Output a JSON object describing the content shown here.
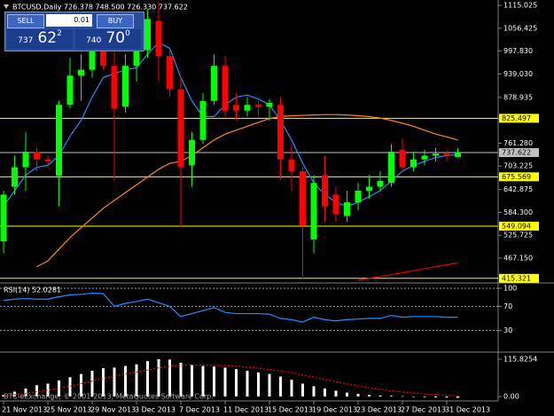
{
  "title": "BTCUSD,Daily  726.378 748.500 726.330 737.622",
  "watermark": "BTC-eExchange, © 2001-2013, MetaQuotes Software Corp.",
  "trade_panel": {
    "sell": "SELL",
    "lot": "0.01",
    "buy": "BUY",
    "bid": {
      "main": "737",
      "big": "62",
      "sup": "2"
    },
    "ask": {
      "main": "740",
      "big": "70",
      "sup": "0"
    }
  },
  "chart_data": [
    {
      "type": "candlestick",
      "categories": [
        "21 Nov 2013",
        null,
        null,
        null,
        "25 Nov 2013",
        null,
        null,
        null,
        "29 Nov 2013",
        null,
        null,
        null,
        "3 Dec 2013",
        null,
        null,
        null,
        "7 Dec 2013",
        null,
        null,
        null,
        "11 Dec 2013",
        null,
        null,
        null,
        "15 Dec 2013",
        null,
        null,
        null,
        "19 Dec 2013",
        null,
        null,
        null,
        "23 Dec 2013",
        null,
        null,
        null,
        "27 Dec 2013",
        null,
        null,
        null,
        "31 Dec 2013",
        null
      ],
      "open": [
        510,
        650,
        700,
        740,
        720,
        678,
        860,
        935,
        950,
        1000,
        960,
        855,
        960,
        1000,
        1075,
        985,
        900,
        705,
        770,
        870,
        960,
        860,
        845,
        860,
        855,
        860,
        720,
        690,
        515,
        680,
        630,
        575,
        610,
        640,
        650,
        660,
        745,
        700,
        720,
        730,
        735,
        726.378
      ],
      "high": [
        640,
        730,
        790,
        750,
        730,
        870,
        980,
        990,
        1070,
        1030,
        1000,
        990,
        1030,
        1105,
        1120,
        1000,
        930,
        790,
        890,
        990,
        985,
        890,
        880,
        870,
        875,
        880,
        760,
        700,
        680,
        730,
        650,
        640,
        660,
        680,
        690,
        760,
        775,
        740,
        745,
        750,
        745,
        748.5
      ],
      "low": [
        480,
        630,
        640,
        690,
        700,
        600,
        850,
        870,
        930,
        950,
        665,
        840,
        920,
        980,
        920,
        880,
        545,
        650,
        760,
        860,
        830,
        820,
        830,
        830,
        820,
        670,
        640,
        415,
        480,
        560,
        560,
        560,
        590,
        620,
        640,
        650,
        690,
        690,
        705,
        715,
        715,
        726.33
      ],
      "close": [
        630,
        700,
        740,
        720,
        715,
        860,
        935,
        950,
        1010,
        960,
        850,
        960,
        1000,
        1080,
        985,
        900,
        700,
        770,
        870,
        960,
        845,
        845,
        860,
        855,
        865,
        720,
        690,
        550,
        660,
        600,
        580,
        610,
        640,
        650,
        665,
        740,
        700,
        720,
        730,
        735,
        730,
        737.622
      ],
      "up_color": "#00ff00",
      "down_color": "#ff0000",
      "series": [
        {
          "color": "#1e90ff",
          "values": [
            600,
            640,
            680,
            700,
            705,
            730,
            780,
            820,
            880,
            930,
            940,
            950,
            955,
            990,
            1020,
            1005,
            930,
            870,
            830,
            830,
            860,
            880,
            885,
            875,
            860,
            820,
            770,
            710,
            660,
            630,
            610,
            600,
            610,
            625,
            640,
            665,
            690,
            705,
            715,
            725,
            730,
            733
          ]
        },
        {
          "color": "#ff8c00",
          "values": [
            null,
            null,
            null,
            445,
            460,
            490,
            520,
            545,
            570,
            595,
            615,
            635,
            655,
            675,
            695,
            710,
            715,
            730,
            750,
            770,
            785,
            795,
            805,
            815,
            825,
            830,
            832,
            833,
            834,
            835,
            835,
            834,
            832,
            830,
            826,
            820,
            813,
            805,
            795,
            785,
            778,
            770
          ]
        },
        {
          "color": "#e00000",
          "values": [
            null,
            null,
            null,
            null,
            null,
            null,
            null,
            null,
            null,
            null,
            null,
            null,
            null,
            null,
            null,
            null,
            null,
            null,
            null,
            null,
            null,
            null,
            null,
            null,
            null,
            null,
            null,
            null,
            null,
            null,
            null,
            null,
            410,
            415,
            420,
            425,
            430,
            435,
            440,
            445,
            450,
            456
          ]
        }
      ],
      "hlines": [
        {
          "value": 825.497,
          "color": "#ffff00"
        },
        {
          "value": 737.622,
          "color": "#c0c0c0"
        },
        {
          "value": 675.569,
          "color": "#ffff00"
        },
        {
          "value": 549.094,
          "color": "#ffff00"
        },
        {
          "value": 415.321,
          "color": "#ffff00"
        }
      ],
      "ylim": [
        405.8,
        1128.7
      ],
      "yticks": [
        1115.025,
        1056.425,
        {
          "value": 997.83,
          "label": "997.830"
        },
        {
          "value": 939.03,
          "label": "939.030"
        },
        878.935,
        {
          "value": 761.28,
          "label": "761.280"
        },
        703.225,
        642.875,
        {
          "value": 584.3,
          "label": "584.300"
        },
        525.725,
        {
          "value": 467.15,
          "label": "467.150"
        }
      ]
    },
    {
      "type": "line",
      "title": "RSI(14) 52.0281",
      "series": [
        {
          "color": "#1e90ff",
          "values": [
            80,
            82,
            83,
            82,
            82,
            86,
            89,
            90,
            92,
            91,
            70,
            75,
            78,
            82,
            76,
            70,
            53,
            58,
            63,
            68,
            60,
            58,
            58,
            58,
            57,
            50,
            48,
            44,
            52,
            48,
            46,
            48,
            49,
            50,
            50,
            55,
            52,
            53,
            53,
            53,
            52,
            52.0281
          ]
        }
      ],
      "ylim": [
        0,
        100
      ],
      "yticks": [
        100,
        70,
        30
      ],
      "grid": "dotted"
    },
    {
      "type": "bar",
      "color": "#ffffff",
      "values": [
        5,
        15,
        25,
        35,
        40,
        50,
        60,
        70,
        80,
        88,
        90,
        95,
        100,
        110,
        116,
        115,
        105,
        98,
        95,
        93,
        90,
        85,
        80,
        75,
        70,
        62,
        52,
        40,
        32,
        25,
        18,
        12,
        8,
        5,
        3,
        2,
        1,
        -1,
        -2,
        -3,
        -3,
        -4
      ],
      "series": [
        {
          "color": "#ff0000",
          "style": "dotted",
          "values": [
            2,
            5,
            10,
            15,
            20,
            26,
            32,
            40,
            48,
            56,
            63,
            70,
            76,
            82,
            89,
            94,
            97,
            98,
            98,
            97,
            96,
            94,
            91,
            88,
            84,
            80,
            74,
            67,
            60,
            53,
            46,
            39,
            33,
            27,
            22,
            18,
            14,
            11,
            8,
            6,
            4,
            2
          ]
        }
      ],
      "ylim": [
        -13.8,
        132.5
      ],
      "yticks": [
        115.8254,
        {
          "value": 0,
          "label": "0.00"
        }
      ]
    }
  ]
}
